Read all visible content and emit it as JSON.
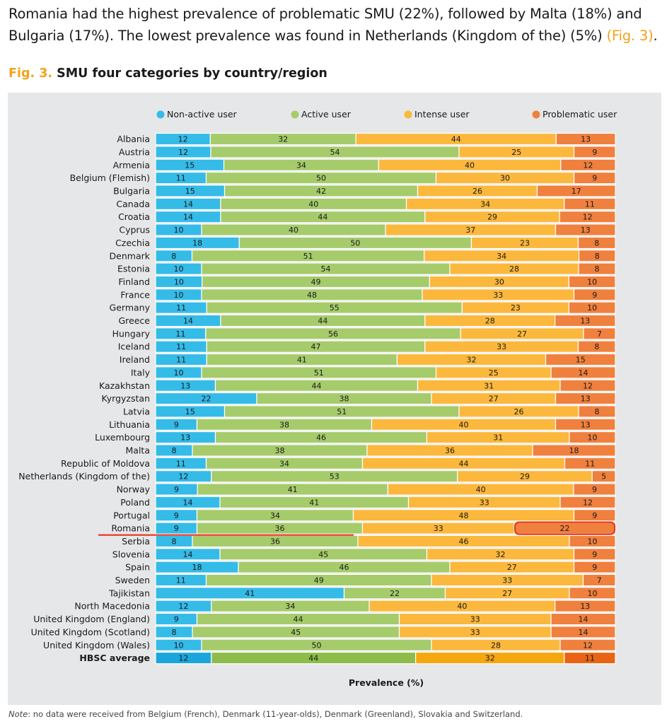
{
  "intro": {
    "text": "Romania had the highest prevalence of problematic SMU (22%), followed by Malta (18%) and Bulgaria (17%). The lowest prevalence was found in Netherlands (Kingdom of the) (5%)",
    "ref": "(Fig. 3)",
    "end": "."
  },
  "figure": {
    "number": "Fig. 3.",
    "title": "SMU four categories by country/region"
  },
  "note": {
    "label": "Note",
    "text": ": no data were received from Belgium (French), Denmark (11-year-olds), Denmark (Greenland), Slovakia and Switzerland."
  },
  "chart_data": {
    "type": "bar",
    "orientation": "horizontal",
    "stacked": true,
    "xlabel": "Prevalence (%)",
    "legend_position": "top",
    "highlight": {
      "category": "Romania",
      "series": "Problematic user"
    },
    "categories": [
      "Albania",
      "Austria",
      "Armenia",
      "Belgium (Flemish)",
      "Bulgaria",
      "Canada",
      "Croatia",
      "Cyprus",
      "Czechia",
      "Denmark",
      "Estonia",
      "Finland",
      "France",
      "Germany",
      "Greece",
      "Hungary",
      "Iceland",
      "Ireland",
      "Italy",
      "Kazakhstan",
      "Kyrgyzstan",
      "Latvia",
      "Lithuania",
      "Luxembourg",
      "Malta",
      "Republic of Moldova",
      "Netherlands (Kingdom of the)",
      "Norway",
      "Poland",
      "Portugal",
      "Romania",
      "Serbia",
      "Slovenia",
      "Spain",
      "Sweden",
      "Tajikistan",
      "North Macedonia",
      "United Kingdom (England)",
      "United Kingdom (Scotland)",
      "United Kingdom (Wales)",
      "HBSC average"
    ],
    "series": [
      {
        "name": "Non-active user",
        "color": "#35bbe8",
        "avg_color": "#1aa6dc",
        "values": [
          12,
          12,
          15,
          11,
          15,
          14,
          14,
          10,
          18,
          8,
          10,
          10,
          10,
          11,
          14,
          11,
          11,
          11,
          10,
          13,
          22,
          15,
          9,
          13,
          8,
          11,
          12,
          9,
          14,
          9,
          9,
          8,
          14,
          18,
          11,
          41,
          12,
          9,
          8,
          10,
          12
        ]
      },
      {
        "name": "Active user",
        "color": "#a6cb6b",
        "avg_color": "#8dbc4a",
        "values": [
          32,
          54,
          34,
          50,
          42,
          40,
          44,
          40,
          50,
          51,
          54,
          49,
          48,
          55,
          44,
          56,
          47,
          41,
          51,
          44,
          38,
          51,
          38,
          46,
          38,
          34,
          53,
          41,
          41,
          34,
          36,
          36,
          45,
          46,
          49,
          22,
          34,
          44,
          45,
          50,
          44
        ]
      },
      {
        "name": "Intense user",
        "color": "#fbb83c",
        "avg_color": "#f6a60f",
        "values": [
          44,
          25,
          40,
          30,
          26,
          34,
          29,
          37,
          23,
          34,
          28,
          30,
          33,
          23,
          28,
          27,
          33,
          32,
          25,
          31,
          27,
          26,
          40,
          31,
          36,
          44,
          29,
          40,
          33,
          48,
          33,
          46,
          32,
          27,
          33,
          27,
          40,
          33,
          33,
          28,
          32
        ]
      },
      {
        "name": "Problematic user",
        "color": "#f0803e",
        "avg_color": "#e86414",
        "values": [
          13,
          9,
          12,
          9,
          17,
          11,
          12,
          13,
          8,
          8,
          8,
          10,
          9,
          10,
          13,
          7,
          8,
          15,
          14,
          12,
          13,
          8,
          13,
          10,
          18,
          11,
          5,
          9,
          12,
          9,
          22,
          10,
          9,
          9,
          7,
          10,
          13,
          14,
          14,
          12,
          11
        ]
      }
    ]
  }
}
